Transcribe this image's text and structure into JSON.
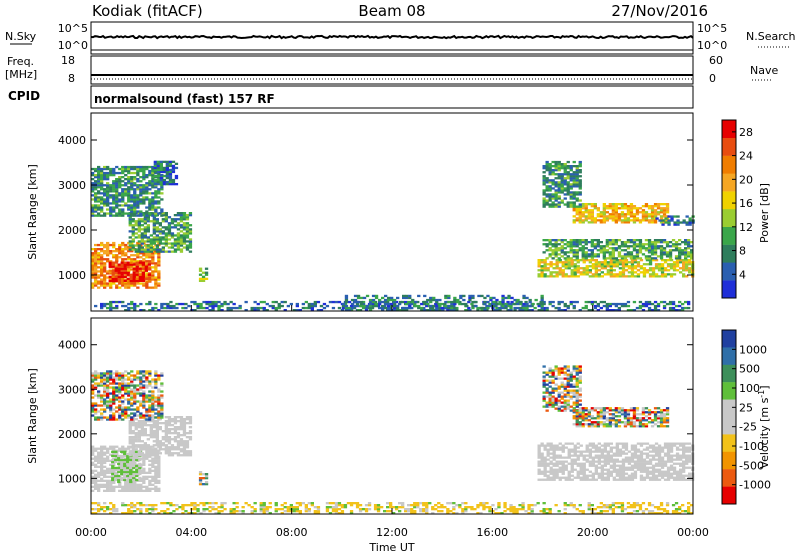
{
  "header": {
    "station": "Kodiak (fitACF)",
    "beam": "Beam 08",
    "date": "27/Nov/2016"
  },
  "strips": {
    "nsky_label": "N.Sky",
    "nsky_ticks": [
      "10^5",
      "10^0"
    ],
    "nsearch_label": "N.Search",
    "nsearch_ticks": [
      "10^5",
      "10^0"
    ],
    "freq_label": "Freq.",
    "freq_unit": "[MHz]",
    "freq_ticks": [
      "18",
      "8"
    ],
    "nave_label": "Nave",
    "nave_ticks": [
      "60",
      "0"
    ],
    "cpid_label": "CPID",
    "cpid_value": "normalsound (fast) 157 RF"
  },
  "colors": {
    "power": [
      "#1f2fd8",
      "#2a5fb0",
      "#2e7d5c",
      "#3aa64a",
      "#9acd32",
      "#f0d200",
      "#f5a623",
      "#f07d00",
      "#e84d10",
      "#e60000"
    ],
    "velocity": [
      "#2040a0",
      "#2f6fa8",
      "#3d8f5a",
      "#5fbf3a",
      "#c8c8c8",
      "#c8c8c8",
      "#f2c21a",
      "#f29400",
      "#ec5a10",
      "#e60000"
    ],
    "ground": "#c8c8c8"
  },
  "chart_data": [
    {
      "type": "heatmap",
      "panel": "power",
      "title": "",
      "xlabel": "",
      "ylabel": "Slant Range [km]",
      "xlim": [
        0,
        24
      ],
      "ylim": [
        200,
        4600
      ],
      "x_ticks": [
        "00:00",
        "04:00",
        "08:00",
        "12:00",
        "16:00",
        "20:00",
        "00:00"
      ],
      "y_ticks": [
        1000,
        2000,
        3000,
        4000
      ],
      "colorbar": {
        "label": "Power [dB]",
        "ticks": [
          "4",
          "8",
          "12",
          "16",
          "20",
          "24",
          "28"
        ],
        "range": [
          0,
          30
        ]
      },
      "regions": [
        {
          "t0": 0.0,
          "t1": 2.7,
          "r0": 700,
          "r1": 1700,
          "level": 22
        },
        {
          "t0": 0.7,
          "t1": 2.3,
          "r0": 850,
          "r1": 1300,
          "level": 28
        },
        {
          "t0": 1.5,
          "t1": 4.0,
          "r0": 1500,
          "r1": 2400,
          "level": 10
        },
        {
          "t0": 0.0,
          "t1": 2.8,
          "r0": 2300,
          "r1": 3400,
          "level": 8
        },
        {
          "t0": 2.5,
          "t1": 3.4,
          "r0": 3000,
          "r1": 3500,
          "level": 6
        },
        {
          "t0": 4.3,
          "t1": 4.6,
          "r0": 850,
          "r1": 1150,
          "level": 12
        },
        {
          "t0": 0.0,
          "t1": 24.0,
          "r0": 200,
          "r1": 400,
          "level": 6
        },
        {
          "t0": 10.0,
          "t1": 18.0,
          "r0": 200,
          "r1": 550,
          "level": 7
        },
        {
          "t0": 17.8,
          "t1": 24.0,
          "r0": 950,
          "r1": 1350,
          "level": 16
        },
        {
          "t0": 18.0,
          "t1": 24.0,
          "r0": 1350,
          "r1": 1800,
          "level": 10
        },
        {
          "t0": 19.2,
          "t1": 23.0,
          "r0": 2150,
          "r1": 2600,
          "level": 18
        },
        {
          "t0": 18.0,
          "t1": 19.5,
          "r0": 2500,
          "r1": 3500,
          "level": 8
        },
        {
          "t0": 22.5,
          "t1": 24.0,
          "r0": 2100,
          "r1": 2300,
          "level": 6
        }
      ]
    },
    {
      "type": "heatmap",
      "panel": "velocity",
      "title": "",
      "xlabel": "Time UT",
      "ylabel": "Slant Range [km]",
      "xlim": [
        0,
        24
      ],
      "ylim": [
        200,
        4600
      ],
      "x_ticks": [
        "00:00",
        "04:00",
        "08:00",
        "12:00",
        "16:00",
        "20:00",
        "00:00"
      ],
      "y_ticks": [
        1000,
        2000,
        3000,
        4000
      ],
      "colorbar": {
        "label": "Velocity [m s^-1]",
        "ticks": [
          "1000",
          "500",
          "100",
          "25",
          "-25",
          "-100",
          "-500",
          "-1000"
        ]
      },
      "regions": [
        {
          "t0": 0.0,
          "t1": 2.7,
          "r0": 700,
          "r1": 1700,
          "class": "ground"
        },
        {
          "t0": 0.8,
          "t1": 2.0,
          "r0": 900,
          "r1": 1600,
          "class": "green"
        },
        {
          "t0": 1.5,
          "t1": 4.0,
          "r0": 1500,
          "r1": 2400,
          "class": "ground"
        },
        {
          "t0": 0.0,
          "t1": 2.8,
          "r0": 2300,
          "r1": 3400,
          "class": "mixed"
        },
        {
          "t0": 4.3,
          "t1": 4.6,
          "r0": 850,
          "r1": 1150,
          "class": "mixed"
        },
        {
          "t0": 0.0,
          "t1": 24.0,
          "r0": 200,
          "r1": 450,
          "class": "orange"
        },
        {
          "t0": 17.8,
          "t1": 24.0,
          "r0": 950,
          "r1": 1800,
          "class": "ground"
        },
        {
          "t0": 19.2,
          "t1": 23.0,
          "r0": 2150,
          "r1": 2600,
          "class": "mixed"
        },
        {
          "t0": 18.0,
          "t1": 19.5,
          "r0": 2500,
          "r1": 3500,
          "class": "mixed"
        }
      ]
    }
  ]
}
